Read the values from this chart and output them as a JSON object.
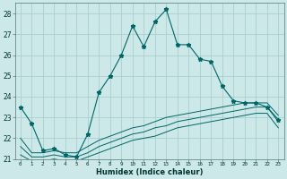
{
  "xlabel": "Humidex (Indice chaleur)",
  "background_color": "#cce8e8",
  "grid_color": "#aacece",
  "line_color": "#006666",
  "x_values": [
    0,
    1,
    2,
    3,
    4,
    5,
    6,
    7,
    8,
    9,
    10,
    11,
    12,
    13,
    14,
    15,
    16,
    17,
    18,
    19,
    20,
    21,
    22,
    23
  ],
  "main_y": [
    23.5,
    22.7,
    21.4,
    21.5,
    21.2,
    21.1,
    22.2,
    24.2,
    25.0,
    26.0,
    27.4,
    26.4,
    27.6,
    28.2,
    26.5,
    26.5,
    25.8,
    25.7,
    24.5,
    23.8,
    23.7,
    23.7,
    23.5,
    22.9
  ],
  "line2_y": [
    22.0,
    21.3,
    21.3,
    21.4,
    21.3,
    21.3,
    21.6,
    21.9,
    22.1,
    22.3,
    22.5,
    22.6,
    22.8,
    23.0,
    23.1,
    23.2,
    23.3,
    23.4,
    23.5,
    23.6,
    23.7,
    23.7,
    23.7,
    23.1
  ],
  "line3_y": [
    21.6,
    21.1,
    21.1,
    21.2,
    21.1,
    21.1,
    21.3,
    21.6,
    21.8,
    22.0,
    22.2,
    22.3,
    22.5,
    22.6,
    22.8,
    22.9,
    23.0,
    23.1,
    23.2,
    23.3,
    23.4,
    23.5,
    23.5,
    22.8
  ],
  "line4_y": [
    21.2,
    20.9,
    20.9,
    21.0,
    20.9,
    20.9,
    21.1,
    21.3,
    21.5,
    21.7,
    21.9,
    22.0,
    22.1,
    22.3,
    22.5,
    22.6,
    22.7,
    22.8,
    22.9,
    23.0,
    23.1,
    23.2,
    23.2,
    22.5
  ],
  "ylim": [
    21.0,
    28.5
  ],
  "yticks": [
    21,
    22,
    23,
    24,
    25,
    26,
    27,
    28
  ],
  "xlim": [
    -0.5,
    23.5
  ],
  "xlabel_fontsize": 6.0,
  "ytick_fontsize": 5.5,
  "xtick_fontsize": 4.2
}
